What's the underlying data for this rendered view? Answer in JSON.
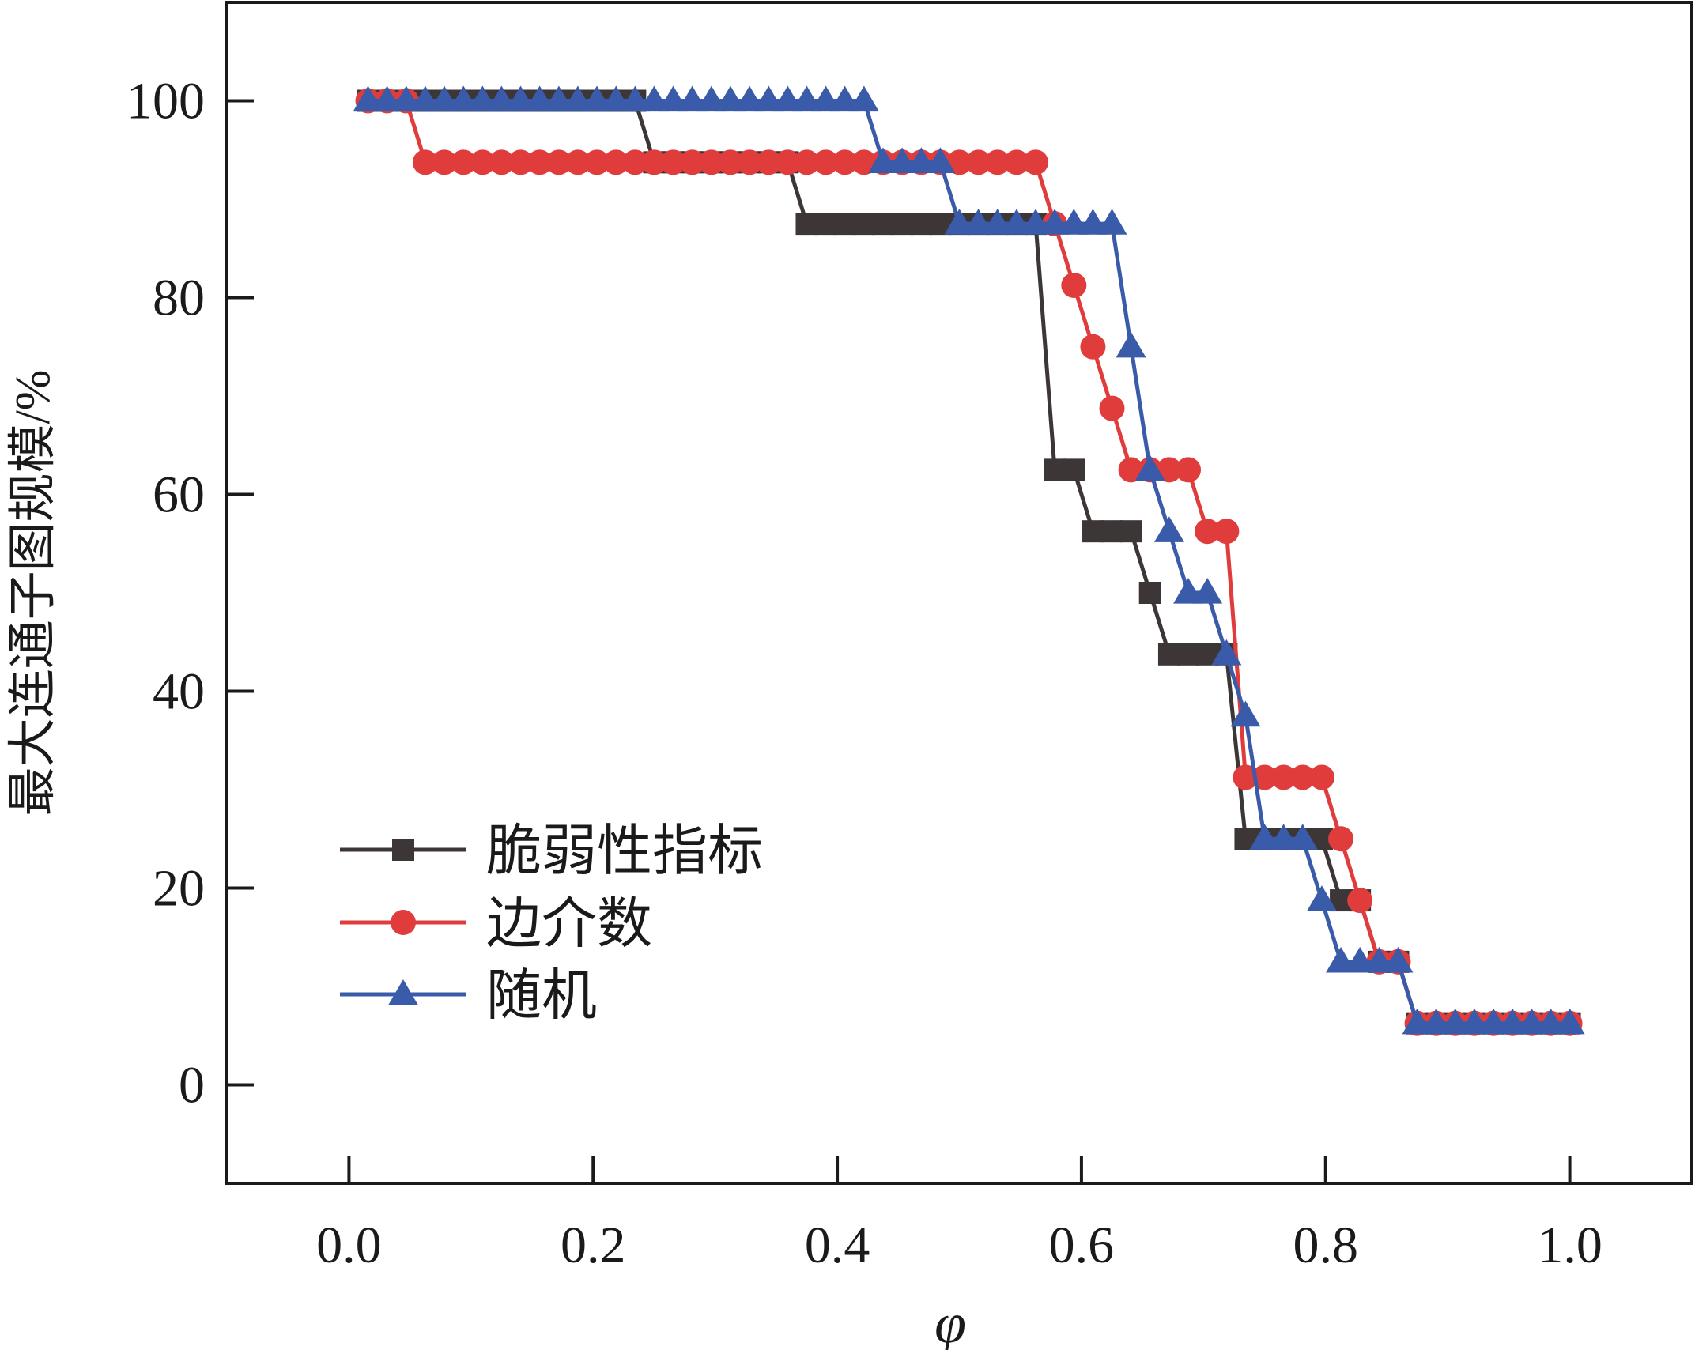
{
  "chart_data": {
    "type": "line",
    "title": "",
    "xlabel": "φ",
    "ylabel": "最大连通子图规模/%",
    "xlim": [
      -0.1,
      1.1
    ],
    "ylim": [
      -10,
      110
    ],
    "xticks": [
      0.0,
      0.2,
      0.4,
      0.6,
      0.8,
      1.0
    ],
    "xtick_labels": [
      "0.0",
      "0.2",
      "0.4",
      "0.6",
      "0.8",
      "1.0"
    ],
    "yticks": [
      0,
      20,
      40,
      60,
      80,
      100
    ],
    "ytick_labels": [
      "0",
      "20",
      "40",
      "60",
      "80",
      "100"
    ],
    "grid": false,
    "legend_position": "lower-left",
    "series": [
      {
        "name": "脆弱性指标",
        "color": "#3d3636",
        "marker": "square",
        "x": [
          0.0156,
          0.0312,
          0.0469,
          0.0625,
          0.0781,
          0.0938,
          0.1094,
          0.125,
          0.1406,
          0.1562,
          0.1719,
          0.1875,
          0.2031,
          0.2188,
          0.2344,
          0.25,
          0.2656,
          0.2812,
          0.2969,
          0.3125,
          0.3281,
          0.3438,
          0.3594,
          0.375,
          0.3906,
          0.4062,
          0.4219,
          0.4375,
          0.4531,
          0.4688,
          0.4844,
          0.5,
          0.5156,
          0.5312,
          0.5469,
          0.5625,
          0.5781,
          0.5938,
          0.6094,
          0.625,
          0.6406,
          0.6562,
          0.6719,
          0.6875,
          0.7031,
          0.7188,
          0.7344,
          0.75,
          0.7656,
          0.7812,
          0.7969,
          0.8125,
          0.8281,
          0.8438,
          0.8594,
          0.875,
          0.8906,
          0.9062,
          0.9219,
          0.9375,
          0.9531,
          0.9688,
          0.9844,
          1.0
        ],
        "y": [
          100,
          100,
          100,
          100,
          100,
          100,
          100,
          100,
          100,
          100,
          100,
          100,
          100,
          100,
          100,
          93.75,
          93.75,
          93.75,
          93.75,
          93.75,
          93.75,
          93.75,
          93.75,
          87.5,
          87.5,
          87.5,
          87.5,
          87.5,
          87.5,
          87.5,
          87.5,
          87.5,
          87.5,
          87.5,
          87.5,
          87.5,
          62.5,
          62.5,
          56.25,
          56.25,
          56.25,
          50,
          43.75,
          43.75,
          43.75,
          43.75,
          25,
          25,
          25,
          25,
          25,
          18.75,
          18.75,
          12.5,
          12.5,
          6.25,
          6.25,
          6.25,
          6.25,
          6.25,
          6.25,
          6.25,
          6.25,
          6.25
        ]
      },
      {
        "name": "边介数",
        "color": "#e03c3c",
        "marker": "circle",
        "x": [
          0.0156,
          0.0312,
          0.0469,
          0.0625,
          0.0781,
          0.0938,
          0.1094,
          0.125,
          0.1406,
          0.1562,
          0.1719,
          0.1875,
          0.2031,
          0.2188,
          0.2344,
          0.25,
          0.2656,
          0.2812,
          0.2969,
          0.3125,
          0.3281,
          0.3438,
          0.3594,
          0.375,
          0.3906,
          0.4062,
          0.4219,
          0.4375,
          0.4531,
          0.4688,
          0.4844,
          0.5,
          0.5156,
          0.5312,
          0.5469,
          0.5625,
          0.5781,
          0.5938,
          0.6094,
          0.625,
          0.6406,
          0.6562,
          0.6719,
          0.6875,
          0.7031,
          0.7188,
          0.7344,
          0.75,
          0.7656,
          0.7812,
          0.7969,
          0.8125,
          0.8281,
          0.8438,
          0.8594,
          0.875,
          0.8906,
          0.9062,
          0.9219,
          0.9375,
          0.9531,
          0.9688,
          0.9844,
          1.0
        ],
        "y": [
          100,
          100,
          100,
          93.75,
          93.75,
          93.75,
          93.75,
          93.75,
          93.75,
          93.75,
          93.75,
          93.75,
          93.75,
          93.75,
          93.75,
          93.75,
          93.75,
          93.75,
          93.75,
          93.75,
          93.75,
          93.75,
          93.75,
          93.75,
          93.75,
          93.75,
          93.75,
          93.75,
          93.75,
          93.75,
          93.75,
          93.75,
          93.75,
          93.75,
          93.75,
          93.75,
          87.5,
          81.25,
          75,
          68.75,
          62.5,
          62.5,
          62.5,
          62.5,
          56.25,
          56.25,
          31.25,
          31.25,
          31.25,
          31.25,
          31.25,
          25,
          18.75,
          12.5,
          12.5,
          6.25,
          6.25,
          6.25,
          6.25,
          6.25,
          6.25,
          6.25,
          6.25,
          6.25
        ]
      },
      {
        "name": "随机",
        "color": "#3a5ba9",
        "marker": "triangle",
        "x": [
          0.0156,
          0.0312,
          0.0469,
          0.0625,
          0.0781,
          0.0938,
          0.1094,
          0.125,
          0.1406,
          0.1562,
          0.1719,
          0.1875,
          0.2031,
          0.2188,
          0.2344,
          0.25,
          0.2656,
          0.2812,
          0.2969,
          0.3125,
          0.3281,
          0.3438,
          0.3594,
          0.375,
          0.3906,
          0.4062,
          0.4219,
          0.4375,
          0.4531,
          0.4688,
          0.4844,
          0.5,
          0.5156,
          0.5312,
          0.5469,
          0.5625,
          0.5781,
          0.5938,
          0.6094,
          0.625,
          0.6406,
          0.6562,
          0.6719,
          0.6875,
          0.7031,
          0.7188,
          0.7344,
          0.75,
          0.7656,
          0.7812,
          0.7969,
          0.8125,
          0.8281,
          0.8438,
          0.8594,
          0.875,
          0.8906,
          0.9062,
          0.9219,
          0.9375,
          0.9531,
          0.9688,
          0.9844,
          1.0
        ],
        "y": [
          100,
          100,
          100,
          100,
          100,
          100,
          100,
          100,
          100,
          100,
          100,
          100,
          100,
          100,
          100,
          100,
          100,
          100,
          100,
          100,
          100,
          100,
          100,
          100,
          100,
          100,
          100,
          93.75,
          93.75,
          93.75,
          93.75,
          87.5,
          87.5,
          87.5,
          87.5,
          87.5,
          87.5,
          87.5,
          87.5,
          87.5,
          75,
          62.5,
          56.25,
          50,
          50,
          43.75,
          37.5,
          25,
          25,
          25,
          18.75,
          12.5,
          12.5,
          12.5,
          12.5,
          6.25,
          6.25,
          6.25,
          6.25,
          6.25,
          6.25,
          6.25,
          6.25,
          6.25
        ]
      }
    ]
  }
}
